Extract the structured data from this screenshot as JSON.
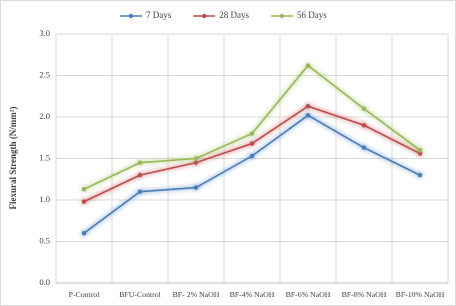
{
  "chart_data": {
    "type": "line",
    "y_label": "Flexural Strength (N/mm²)",
    "categories": [
      "P-Control",
      "BFU-Control",
      "BF- 2% NaOH",
      "BF-4% NaOH",
      "BF-6% NaOH",
      "BF-8% NaOH",
      "BF-10% NaOH"
    ],
    "series": [
      {
        "name": "7 Days",
        "color": "#4a7ebb",
        "values": [
          0.6,
          1.1,
          1.15,
          1.53,
          2.02,
          1.63,
          1.3
        ]
      },
      {
        "name": "28 Days",
        "color": "#be4b48",
        "values": [
          0.98,
          1.3,
          1.45,
          1.68,
          2.13,
          1.9,
          1.56
        ]
      },
      {
        "name": "56 Days",
        "color": "#98b954",
        "values": [
          1.13,
          1.45,
          1.5,
          1.8,
          2.62,
          2.1,
          1.6
        ]
      }
    ],
    "ylim": [
      0,
      3
    ],
    "yticks": [
      {
        "value": 0,
        "label": "0.0"
      },
      0.5,
      {
        "value": 1,
        "label": "1.0"
      },
      1.5,
      {
        "value": 2,
        "label": "2.0"
      },
      2.5,
      {
        "value": 3,
        "label": "3.0"
      }
    ],
    "grid": true
  }
}
